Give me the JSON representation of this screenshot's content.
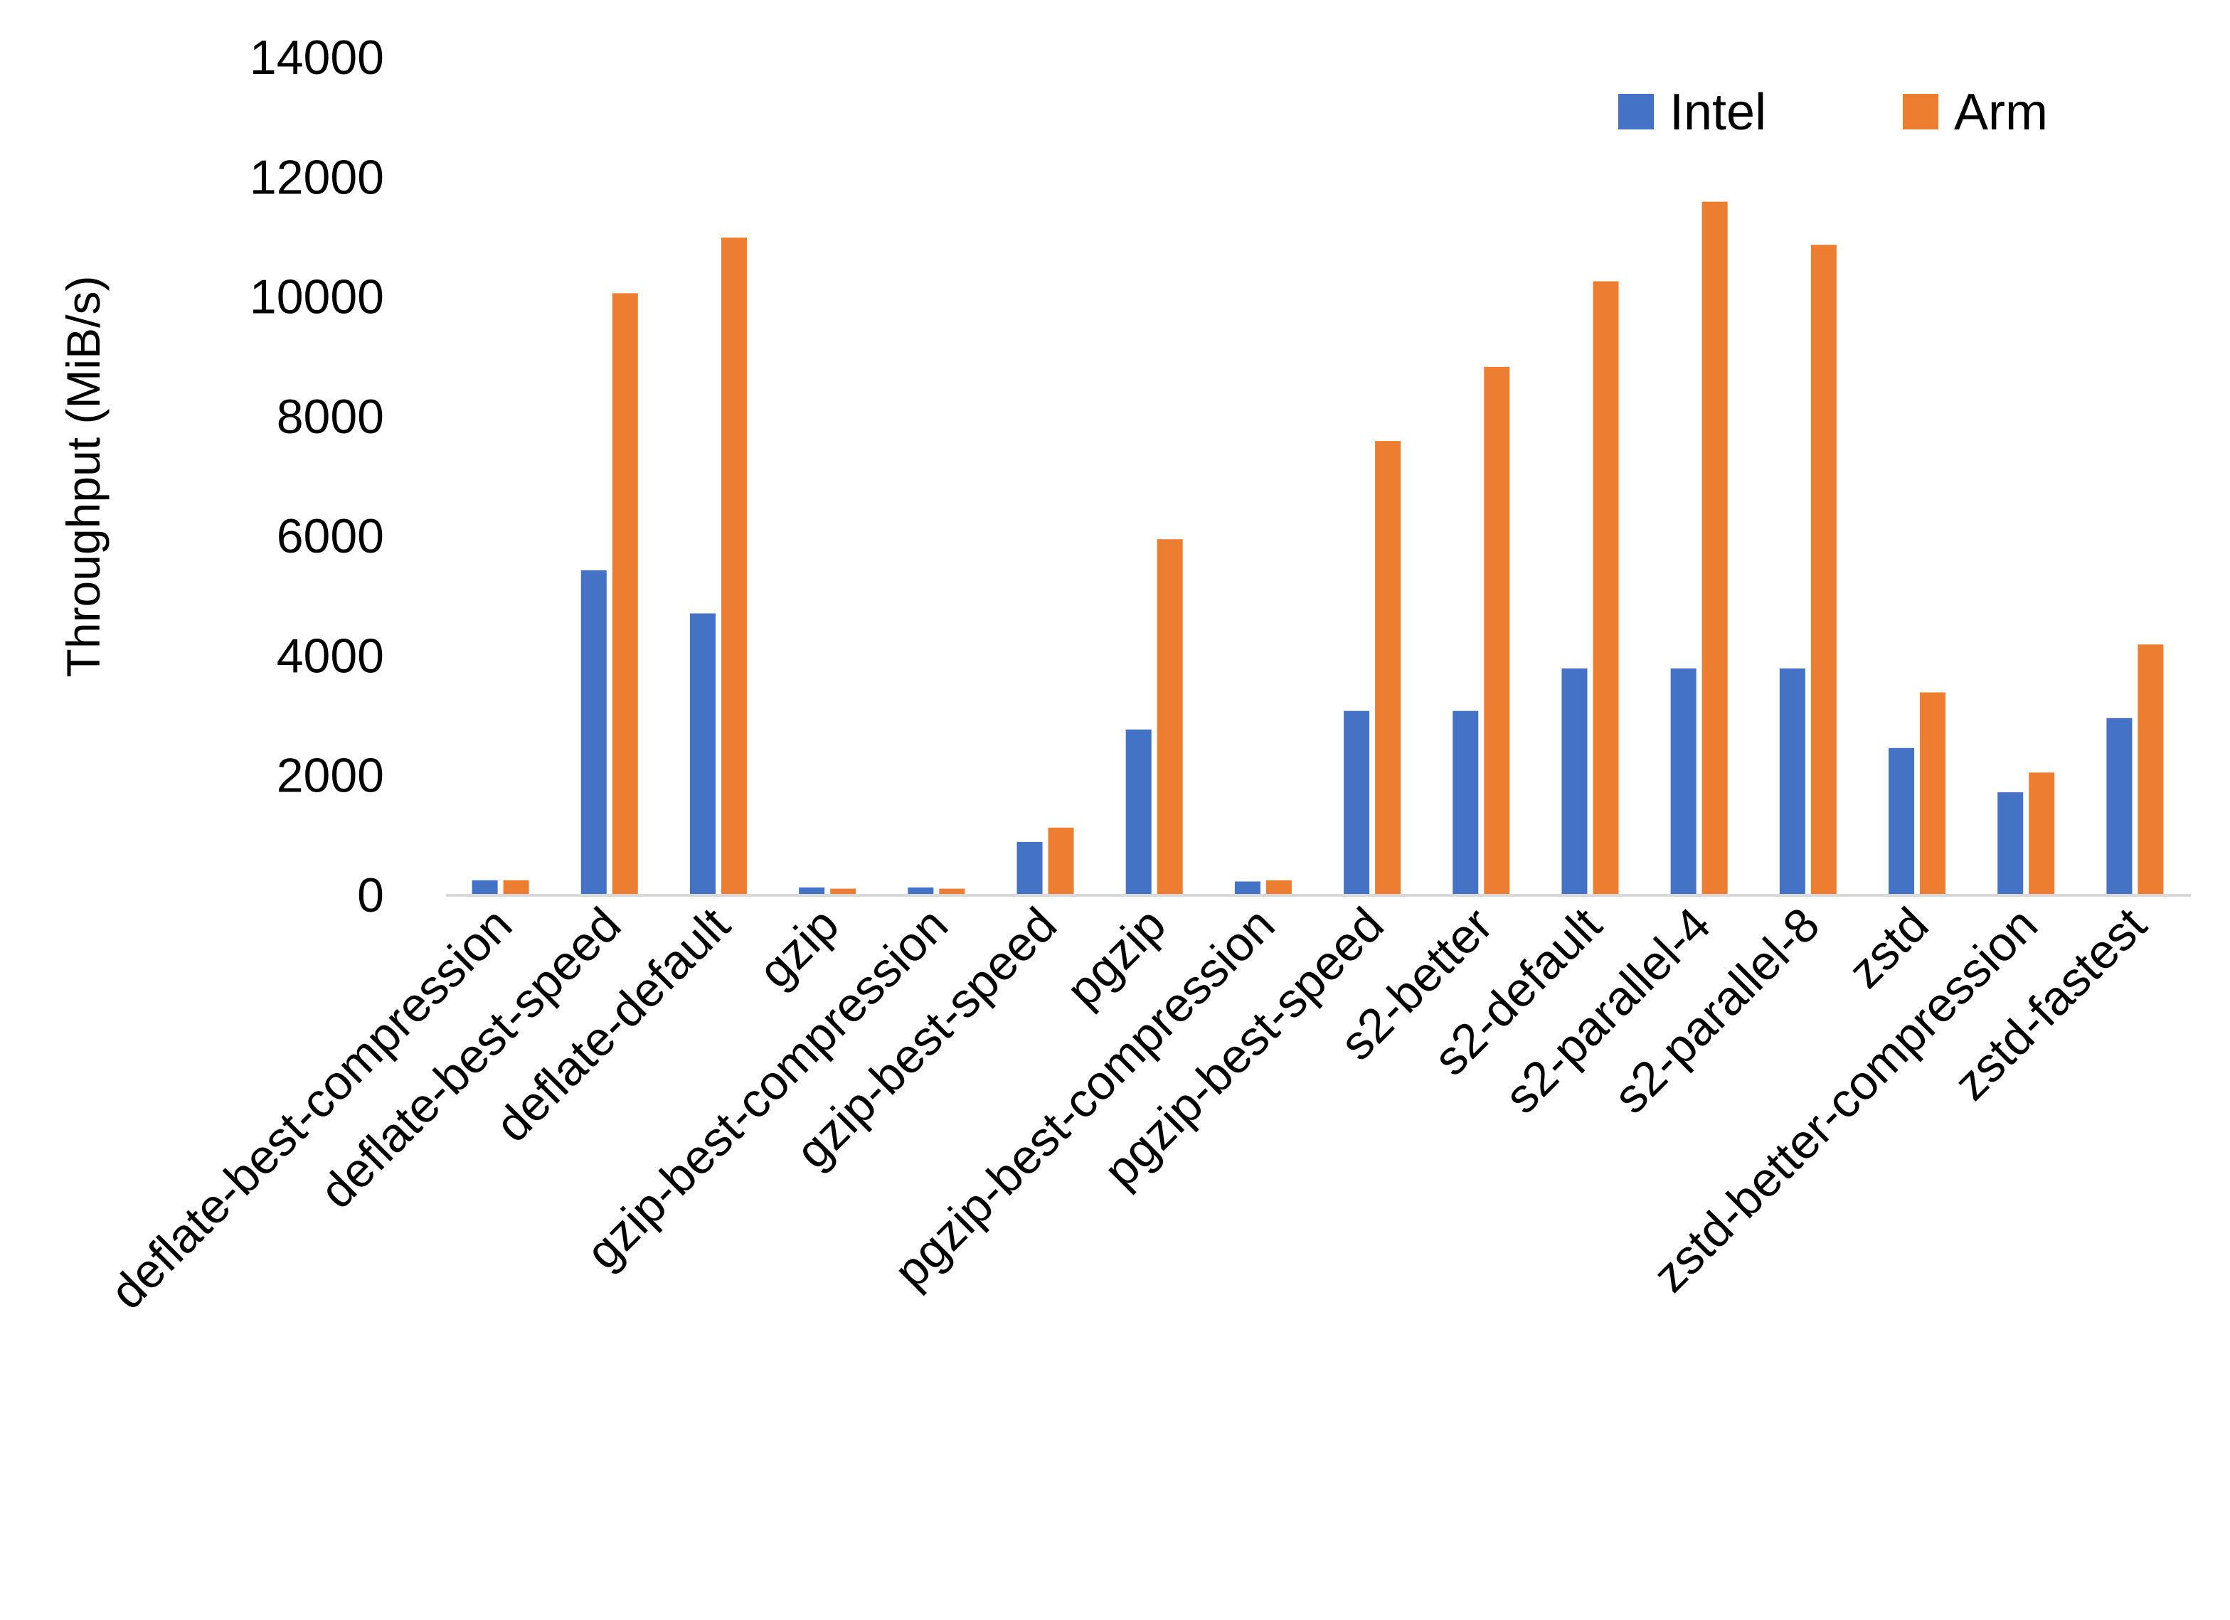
{
  "chart_data": {
    "type": "bar",
    "title": "",
    "xlabel": "",
    "ylabel": "Throughput (MiB/s)",
    "ylim": [
      0,
      14000
    ],
    "yticks": [
      0,
      2000,
      4000,
      6000,
      8000,
      10000,
      12000,
      14000
    ],
    "grid": false,
    "legend_position": "top-right",
    "categories": [
      "deflate-best-compression",
      "deflate-best-speed",
      "deflate-default",
      "gzip",
      "gzip-best-compression",
      "gzip-best-speed",
      "pgzip",
      "pgzip-best-compression",
      "pgzip-best-speed",
      "s2-better",
      "s2-default",
      "s2-parallel-4",
      "s2-parallel-8",
      "zstd",
      "zstd-better-compression",
      "zstd-fastest"
    ],
    "series": [
      {
        "name": "Intel",
        "color": "#4472C4",
        "values": [
          240,
          5420,
          4700,
          120,
          120,
          880,
          2760,
          220,
          3070,
          3070,
          3780,
          3780,
          3780,
          2450,
          1710,
          2950
        ]
      },
      {
        "name": "Arm",
        "color": "#ED7D31",
        "values": [
          240,
          10050,
          10980,
          100,
          100,
          1120,
          5940,
          240,
          7580,
          8820,
          10250,
          11580,
          10860,
          3380,
          2040,
          4180
        ]
      }
    ]
  }
}
